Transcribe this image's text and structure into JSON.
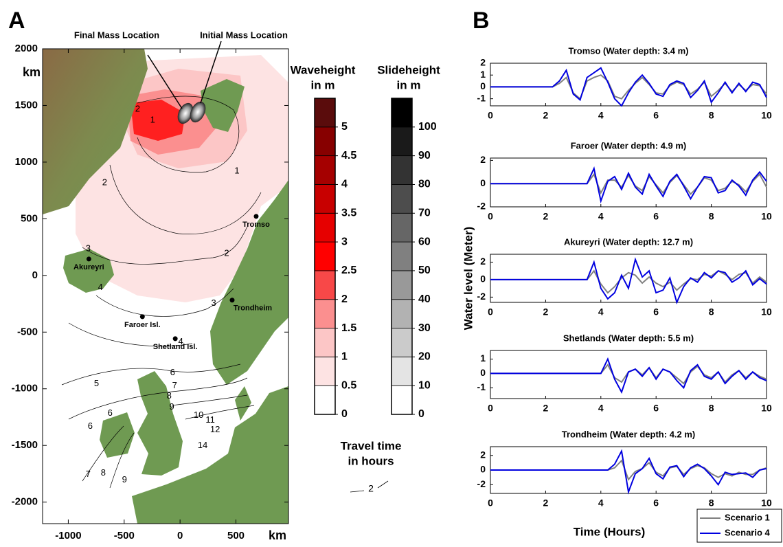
{
  "chart_data": [
    {
      "type": "map",
      "panel_label": "A",
      "xlabel": "km",
      "ylabel": "km",
      "xlim": [
        -1230,
        970
      ],
      "ylim": [
        -2190,
        2000
      ],
      "xticks": [
        -1000,
        -500,
        0,
        500
      ],
      "yticks": [
        -2000,
        -1500,
        -1000,
        -500,
        0,
        500,
        1000,
        1500,
        2000
      ],
      "annotations": [
        "Final Mass Location",
        "Initial Mass Location"
      ],
      "places": [
        {
          "name": "Tromso",
          "x": 681,
          "y": 521
        },
        {
          "name": "Akureyri",
          "x": -816,
          "y": 145
        },
        {
          "name": "Faroer Isl.",
          "x": -337,
          "y": -364
        },
        {
          "name": "Shetland Isl.",
          "x": -43,
          "y": -558
        },
        {
          "name": "Trondheim",
          "x": 466,
          "y": -218
        }
      ],
      "contour_labels": [
        {
          "value": 1,
          "x": 509,
          "y": 921
        },
        {
          "value": 1,
          "x": -245,
          "y": 1370
        },
        {
          "value": 2,
          "x": -380,
          "y": 1467
        },
        {
          "value": 2,
          "x": -675,
          "y": 818
        },
        {
          "value": 2,
          "x": 417,
          "y": 194
        },
        {
          "value": 3,
          "x": -822,
          "y": 236
        },
        {
          "value": 3,
          "x": 301,
          "y": -248
        },
        {
          "value": 4,
          "x": -712,
          "y": -109
        },
        {
          "value": 4,
          "x": 6,
          "y": -588
        },
        {
          "value": 5,
          "x": -748,
          "y": -957
        },
        {
          "value": 6,
          "x": -67,
          "y": -860
        },
        {
          "value": 6,
          "x": -626,
          "y": -1218
        },
        {
          "value": 6,
          "x": -804,
          "y": -1333
        },
        {
          "value": 7,
          "x": -49,
          "y": -976
        },
        {
          "value": 8,
          "x": -98,
          "y": -1067
        },
        {
          "value": 9,
          "x": -74,
          "y": -1164
        },
        {
          "value": 10,
          "x": 166,
          "y": -1236
        },
        {
          "value": 11,
          "x": 270,
          "y": -1279
        },
        {
          "value": 12,
          "x": 313,
          "y": -1364
        },
        {
          "value": 14,
          "x": 202,
          "y": -1503
        },
        {
          "value": 7,
          "x": -822,
          "y": -1757
        },
        {
          "value": 8,
          "x": -687,
          "y": -1745
        },
        {
          "value": 9,
          "x": -497,
          "y": -1806
        }
      ],
      "colorbars": [
        {
          "title": [
            "Waveheight",
            "in m"
          ],
          "ylim": [
            0,
            5.5
          ],
          "yticks": [
            0,
            0.5,
            1,
            1.5,
            2,
            2.5,
            3,
            3.5,
            4,
            4.5,
            5
          ],
          "colors": [
            "#ffffff",
            "#fde3e3",
            "#fcc6c6",
            "#fb8f8f",
            "#f84848",
            "#ff0000",
            "#e60000",
            "#c80000",
            "#a50000",
            "#870000",
            "#5a0c0c"
          ]
        },
        {
          "title": [
            "Slideheight",
            "in m"
          ],
          "ylim": [
            0,
            110
          ],
          "yticks": [
            0,
            10,
            20,
            30,
            40,
            50,
            60,
            70,
            80,
            90,
            100
          ],
          "colors": [
            "#ffffff",
            "#e4e4e4",
            "#cbcbcb",
            "#b2b2b2",
            "#999999",
            "#808080",
            "#666666",
            "#4d4d4d",
            "#333333",
            "#1a1a1a",
            "#000000"
          ]
        }
      ],
      "travel_time_legend": {
        "title": [
          "Travel time",
          "in hours"
        ],
        "sample": 2
      }
    },
    {
      "type": "line",
      "panel_label": "B",
      "title": "Tromso (Water depth: 3.4 m)",
      "x": [
        0,
        0.25,
        0.5,
        0.75,
        1,
        1.25,
        1.5,
        1.75,
        2,
        2.25,
        2.5,
        2.75,
        3,
        3.25,
        3.5,
        3.75,
        4,
        4.25,
        4.5,
        4.75,
        5,
        5.25,
        5.5,
        5.75,
        6,
        6.25,
        6.5,
        6.75,
        7,
        7.25,
        7.5,
        7.75,
        8,
        8.25,
        8.5,
        8.75,
        9,
        9.25,
        9.5,
        9.75,
        10
      ],
      "xlim": [
        0,
        10
      ],
      "xticks": [
        0,
        2,
        4,
        6,
        8,
        10
      ],
      "ylim": [
        -1.6,
        2
      ],
      "yticks": [
        -1,
        0,
        1,
        2
      ],
      "series": [
        {
          "name": "Scenario 1",
          "color": "#808080",
          "values": [
            0,
            0,
            0,
            0,
            0,
            0,
            0,
            0,
            0,
            0,
            0.3,
            0.8,
            -0.5,
            -1.0,
            0.5,
            0.8,
            1.0,
            0.5,
            -0.8,
            -1.0,
            -0.3,
            0.3,
            0.8,
            0.2,
            -0.5,
            -0.6,
            0.1,
            0.4,
            0.2,
            -0.6,
            -0.2,
            0.4,
            -0.8,
            -0.3,
            0.3,
            -0.4,
            0.2,
            -0.3,
            0.2,
            0.1,
            -0.6
          ]
        },
        {
          "name": "Scenario 4",
          "color": "#0000e0",
          "values": [
            0,
            0,
            0,
            0,
            0,
            0,
            0,
            0,
            0,
            0,
            0.5,
            1.4,
            -0.6,
            -1.1,
            0.8,
            1.2,
            1.6,
            0.4,
            -1.0,
            -1.6,
            -0.5,
            0.4,
            1.0,
            0.3,
            -0.6,
            -0.8,
            0.2,
            0.5,
            0.3,
            -0.9,
            -0.3,
            0.5,
            -1.3,
            -0.5,
            0.4,
            -0.5,
            0.3,
            -0.4,
            0.4,
            0.2,
            -0.9
          ]
        }
      ]
    },
    {
      "type": "line",
      "title": "Faroer (Water depth: 4.9 m)",
      "x": [
        0,
        0.25,
        0.5,
        0.75,
        1,
        1.25,
        1.5,
        1.75,
        2,
        2.25,
        2.5,
        2.75,
        3,
        3.25,
        3.5,
        3.75,
        4,
        4.25,
        4.5,
        4.75,
        5,
        5.25,
        5.5,
        5.75,
        6,
        6.25,
        6.5,
        6.75,
        7,
        7.25,
        7.5,
        7.75,
        8,
        8.25,
        8.5,
        8.75,
        9,
        9.25,
        9.5,
        9.75,
        10
      ],
      "xlim": [
        0,
        10
      ],
      "xticks": [
        0,
        2,
        4,
        6,
        8,
        10
      ],
      "ylim": [
        -2,
        2.2
      ],
      "yticks": [
        -2,
        0,
        2
      ],
      "series": [
        {
          "name": "Scenario 1",
          "color": "#808080",
          "values": [
            0,
            0,
            0,
            0,
            0,
            0,
            0,
            0,
            0,
            0,
            0,
            0,
            0,
            0,
            0,
            0.8,
            -0.8,
            0.3,
            0.3,
            -0.3,
            0.7,
            -0.2,
            -0.6,
            0.6,
            -0.1,
            -0.8,
            0.1,
            0.7,
            -0.1,
            -0.9,
            -0.3,
            0.5,
            0.3,
            -0.6,
            -0.4,
            0.2,
            -0.1,
            -0.7,
            0.2,
            0.8,
            -0.3
          ]
        },
        {
          "name": "Scenario 4",
          "color": "#0000e0",
          "values": [
            0,
            0,
            0,
            0,
            0,
            0,
            0,
            0,
            0,
            0,
            0,
            0,
            0,
            0,
            0,
            1.3,
            -1.5,
            0.2,
            0.6,
            -0.5,
            0.9,
            -0.3,
            -0.9,
            0.8,
            -0.2,
            -1.1,
            0.2,
            0.8,
            -0.2,
            -1.3,
            -0.3,
            0.6,
            0.5,
            -0.8,
            -0.6,
            0.3,
            -0.2,
            -1.0,
            0.3,
            1.0,
            0.2
          ]
        }
      ]
    },
    {
      "type": "line",
      "title": "Akureyri (Water depth: 12.7 m)",
      "ylabel": "Water level (Meter)",
      "x": [
        0,
        0.25,
        0.5,
        0.75,
        1,
        1.25,
        1.5,
        1.75,
        2,
        2.25,
        2.5,
        2.75,
        3,
        3.25,
        3.5,
        3.75,
        4,
        4.25,
        4.5,
        4.75,
        5,
        5.25,
        5.5,
        5.75,
        6,
        6.25,
        6.5,
        6.75,
        7,
        7.25,
        7.5,
        7.75,
        8,
        8.25,
        8.5,
        8.75,
        9,
        9.25,
        9.5,
        9.75,
        10
      ],
      "xlim": [
        0,
        10
      ],
      "xticks": [
        0,
        2,
        4,
        6,
        8,
        10
      ],
      "ylim": [
        -2.6,
        2.9
      ],
      "yticks": [
        -2,
        0,
        2
      ],
      "series": [
        {
          "name": "Scenario 1",
          "color": "#808080",
          "values": [
            0,
            0,
            0,
            0,
            0,
            0,
            0,
            0,
            0,
            0,
            0,
            0,
            0,
            0,
            0,
            1.0,
            -0.5,
            -1.5,
            -0.8,
            0.2,
            0.8,
            0.5,
            -0.4,
            0.3,
            -0.4,
            -0.8,
            -0.3,
            -1.2,
            -0.5,
            0.1,
            0.0,
            0.6,
            0.4,
            1.0,
            0.6,
            0.0,
            0.6,
            0.8,
            -0.4,
            0.3,
            -0.3
          ]
        },
        {
          "name": "Scenario 4",
          "color": "#0000e0",
          "values": [
            0,
            0,
            0,
            0,
            0,
            0,
            0,
            0,
            0,
            0,
            0,
            0,
            0,
            0,
            0,
            2.0,
            -1.0,
            -2.2,
            -1.5,
            0.5,
            -1.0,
            2.3,
            0.3,
            1.0,
            -1.5,
            -1.2,
            0.2,
            -2.6,
            -0.8,
            0.2,
            -0.3,
            0.8,
            0.2,
            1.0,
            0.8,
            -0.3,
            0.2,
            1.0,
            -0.6,
            0.1,
            -0.5
          ]
        }
      ]
    },
    {
      "type": "line",
      "title": "Shetlands (Water depth: 5.5 m)",
      "x": [
        0,
        0.25,
        0.5,
        0.75,
        1,
        1.25,
        1.5,
        1.75,
        2,
        2.25,
        2.5,
        2.75,
        3,
        3.25,
        3.5,
        3.75,
        4,
        4.25,
        4.5,
        4.75,
        5,
        5.25,
        5.5,
        5.75,
        6,
        6.25,
        6.5,
        6.75,
        7,
        7.25,
        7.5,
        7.75,
        8,
        8.25,
        8.5,
        8.75,
        9,
        9.25,
        9.5,
        9.75,
        10
      ],
      "xlim": [
        0,
        10
      ],
      "xticks": [
        0,
        2,
        4,
        6,
        8,
        10
      ],
      "ylim": [
        -1.75,
        1.6
      ],
      "yticks": [
        -1,
        0,
        1
      ],
      "series": [
        {
          "name": "Scenario 1",
          "color": "#808080",
          "values": [
            0,
            0,
            0,
            0,
            0,
            0,
            0,
            0,
            0,
            0,
            0,
            0,
            0,
            0,
            0,
            0,
            0,
            0.6,
            -0.3,
            -0.6,
            0.1,
            0.3,
            -0.1,
            0.4,
            -0.3,
            0.3,
            0.1,
            -0.3,
            -0.7,
            0.1,
            0.5,
            -0.1,
            -0.3,
            0.1,
            -0.6,
            -0.1,
            0.2,
            -0.3,
            0.1,
            -0.2,
            -0.4
          ]
        },
        {
          "name": "Scenario 4",
          "color": "#0000e0",
          "values": [
            0,
            0,
            0,
            0,
            0,
            0,
            0,
            0,
            0,
            0,
            0,
            0,
            0,
            0,
            0,
            0,
            0,
            1.0,
            -0.4,
            -1.3,
            0.1,
            0.3,
            -0.2,
            0.4,
            -0.4,
            0.3,
            0.1,
            -0.5,
            -1.0,
            0.2,
            0.6,
            -0.2,
            -0.4,
            0.1,
            -0.7,
            -0.2,
            0.2,
            -0.4,
            0.1,
            -0.3,
            -0.5
          ]
        }
      ]
    },
    {
      "type": "line",
      "title": "Trondheim (Water depth: 4.2 m)",
      "xlabel": "Time (Hours)",
      "legend": "lower right",
      "x": [
        0,
        0.25,
        0.5,
        0.75,
        1,
        1.25,
        1.5,
        1.75,
        2,
        2.25,
        2.5,
        2.75,
        3,
        3.25,
        3.5,
        3.75,
        4,
        4.25,
        4.5,
        4.75,
        5,
        5.25,
        5.5,
        5.75,
        6,
        6.25,
        6.5,
        6.75,
        7,
        7.25,
        7.5,
        7.75,
        8,
        8.25,
        8.5,
        8.75,
        9,
        9.25,
        9.5,
        9.75,
        10
      ],
      "xlim": [
        0,
        10
      ],
      "xticks": [
        0,
        2,
        4,
        6,
        8,
        10
      ],
      "ylim": [
        -3.2,
        3.2
      ],
      "yticks": [
        -2,
        0,
        2
      ],
      "series": [
        {
          "name": "Scenario 1",
          "color": "#808080",
          "values": [
            0,
            0,
            0,
            0,
            0,
            0,
            0,
            0,
            0,
            0,
            0,
            0,
            0,
            0,
            0,
            0,
            0,
            0,
            0.3,
            1.3,
            -1.3,
            -0.2,
            0.2,
            1.0,
            -0.3,
            -0.8,
            0.3,
            0.5,
            -0.6,
            0.2,
            0.6,
            0.3,
            -0.5,
            -1.0,
            -0.5,
            -0.8,
            -0.3,
            -0.6,
            -0.6,
            0.0,
            0.3
          ]
        },
        {
          "name": "Scenario 4",
          "color": "#0000e0",
          "values": [
            0,
            0,
            0,
            0,
            0,
            0,
            0,
            0,
            0,
            0,
            0,
            0,
            0,
            0,
            0,
            0,
            0,
            0,
            0.8,
            2.6,
            -3.0,
            -0.5,
            0.2,
            1.6,
            -0.5,
            -1.2,
            0.4,
            0.6,
            -0.9,
            0.3,
            0.8,
            0.2,
            -0.8,
            -2.0,
            -0.3,
            -0.6,
            -0.5,
            -0.4,
            -1.0,
            0.0,
            0.2
          ]
        }
      ]
    }
  ]
}
